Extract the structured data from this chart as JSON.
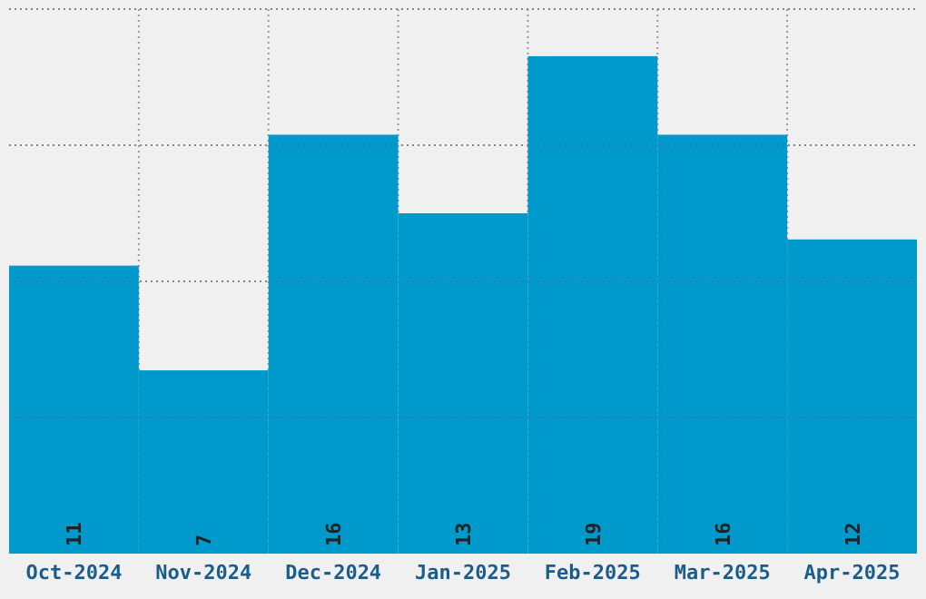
{
  "chart_data": {
    "type": "bar",
    "categories": [
      "Oct-2024",
      "Nov-2024",
      "Dec-2024",
      "Jan-2025",
      "Feb-2025",
      "Mar-2025",
      "Apr-2025"
    ],
    "values": [
      11,
      7,
      16,
      13,
      19,
      16,
      12
    ],
    "color": "#0099cc",
    "data_labels": true,
    "grid": true,
    "tick_labels": "x",
    "ylim": [
      0,
      20.8
    ],
    "yticks": [
      {
        "value": 5.2,
        "label": null
      },
      {
        "value": 10.4,
        "label": null
      },
      {
        "value": 15.6,
        "label": null
      },
      {
        "value": 20.8,
        "label": null
      }
    ]
  }
}
